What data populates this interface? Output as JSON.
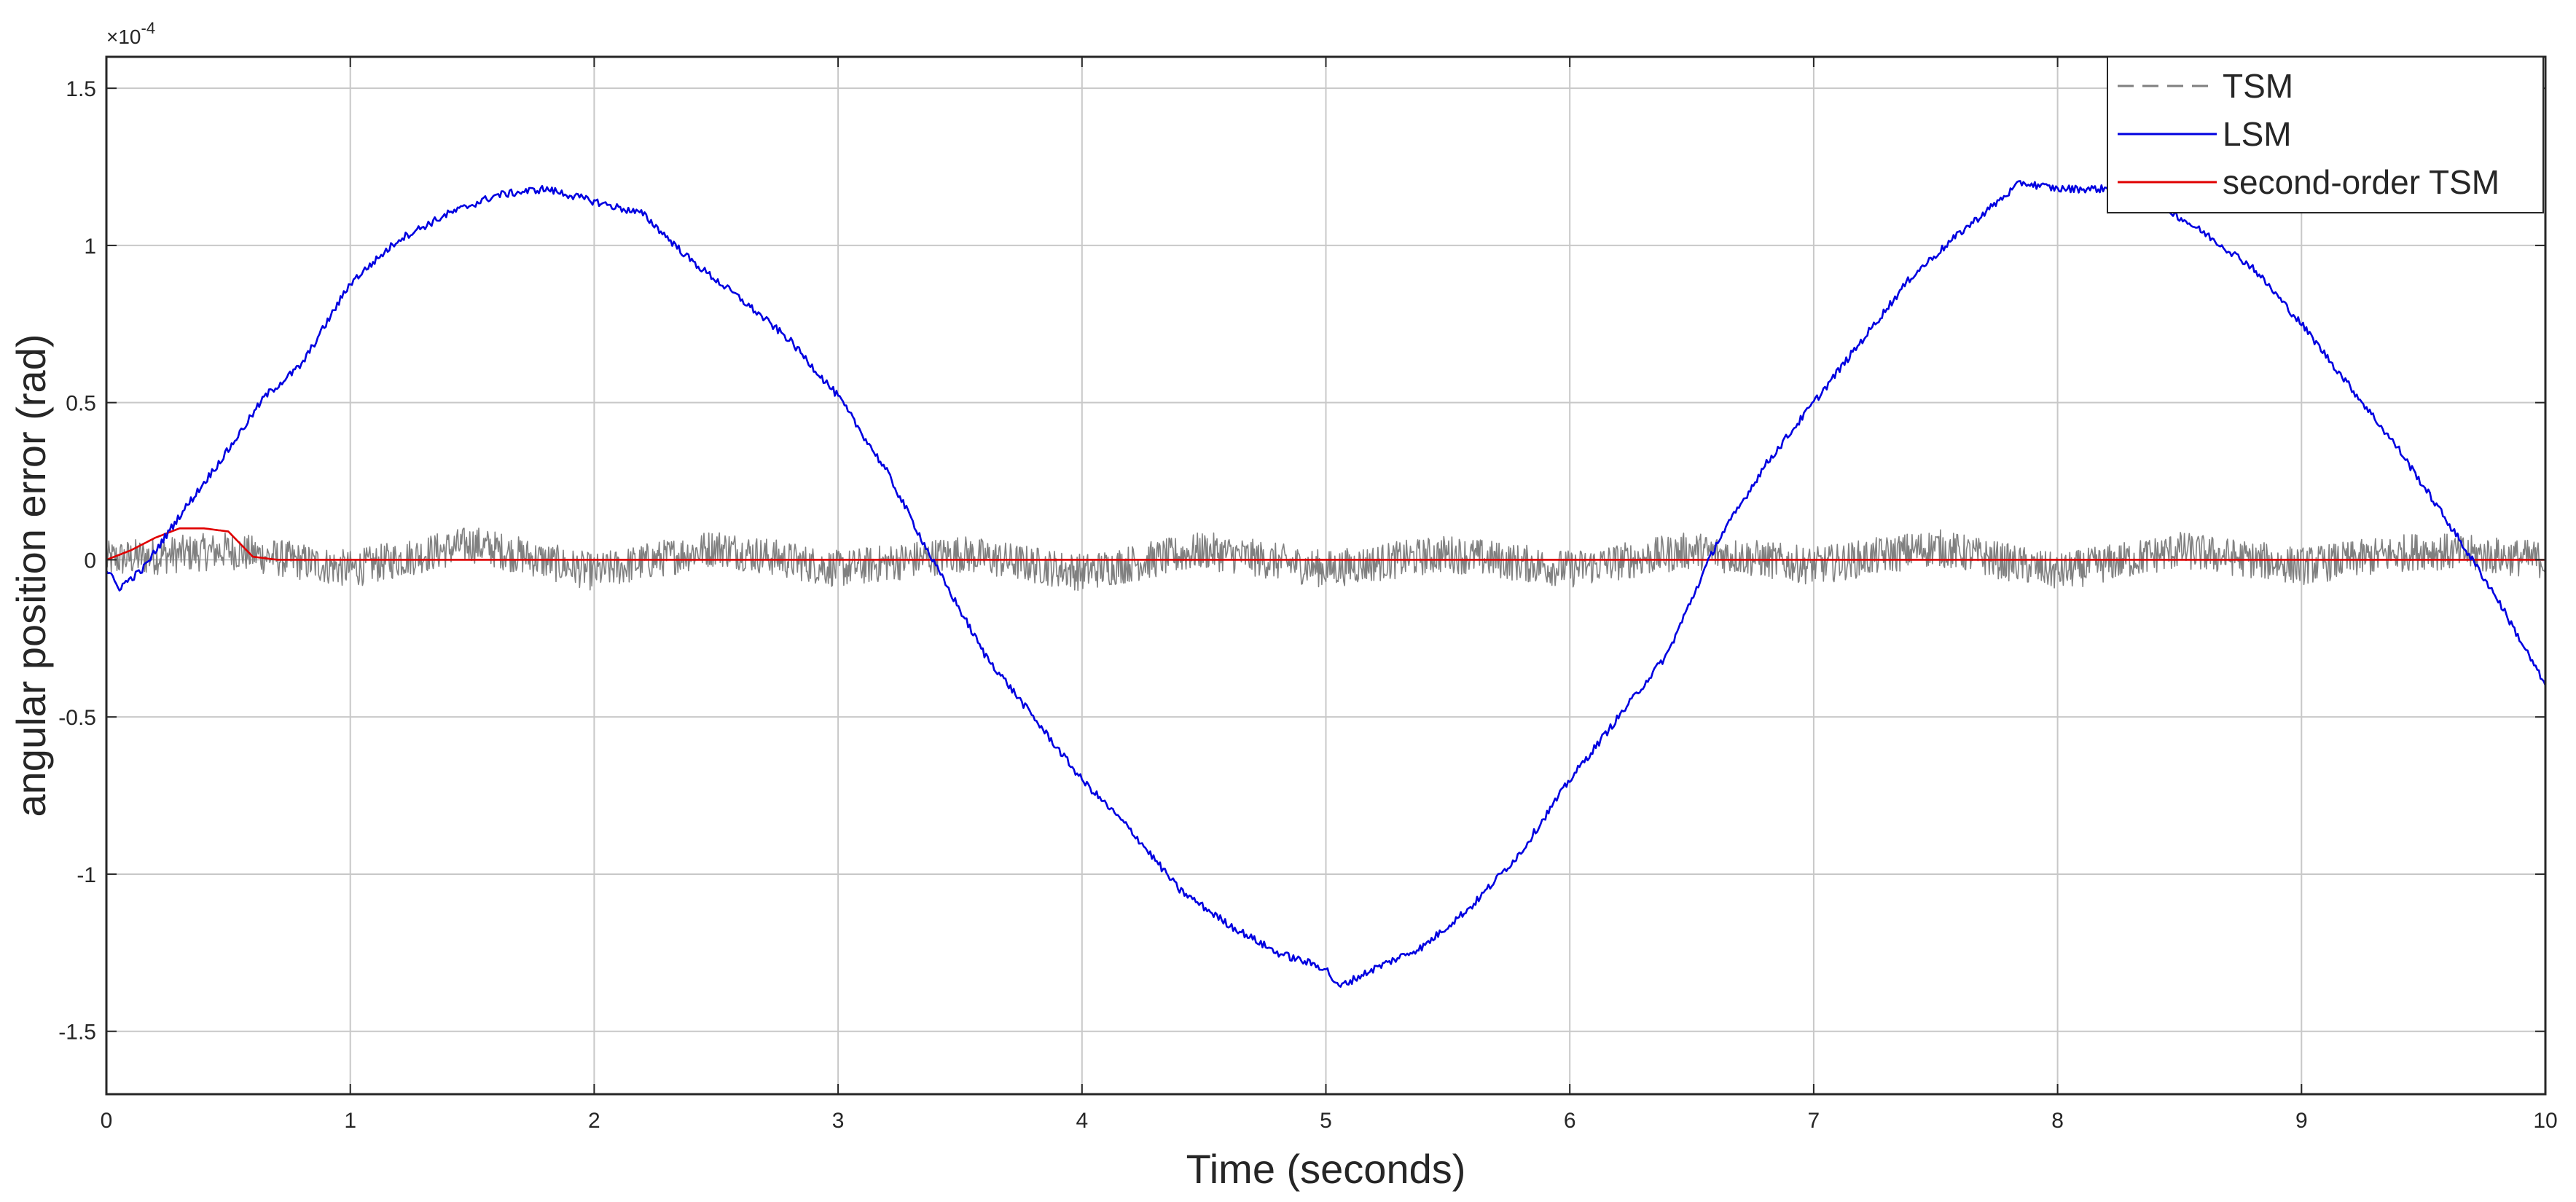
{
  "chart_data": {
    "type": "line",
    "title": "",
    "xlabel": "Time (seconds)",
    "ylabel": "angular position error (rad)",
    "y_exponent_base": "×10",
    "y_exponent_power": "-4",
    "xlim": [
      0,
      10
    ],
    "ylim": [
      -1.7,
      1.6
    ],
    "x_ticks": [
      0,
      1,
      2,
      3,
      4,
      5,
      6,
      7,
      8,
      9,
      10
    ],
    "x_tick_labels": [
      "0",
      "1",
      "2",
      "3",
      "4",
      "5",
      "6",
      "7",
      "8",
      "9",
      "10"
    ],
    "y_ticks": [
      -1.5,
      -1,
      -0.5,
      0,
      0.5,
      1,
      1.5
    ],
    "y_tick_labels": [
      "-1.5",
      "-1",
      "-0.5",
      "0",
      "0.5",
      "1",
      "1.5"
    ],
    "grid": true,
    "legend_position": "top-right",
    "series": [
      {
        "name": "TSM",
        "color": "#808080",
        "style": "dashed",
        "x": [
          0,
          0.5,
          1,
          1.5,
          2,
          2.5,
          3,
          3.5,
          4,
          4.5,
          5,
          5.5,
          6,
          6.5,
          7,
          7.5,
          8,
          8.5,
          9,
          9.5,
          10
        ],
        "y": [
          0,
          0.03,
          -0.03,
          0.05,
          -0.04,
          0.04,
          -0.03,
          0.02,
          -0.04,
          0.03,
          -0.03,
          0.02,
          -0.03,
          0.03,
          -0.02,
          0.04,
          -0.04,
          0.03,
          -0.02,
          0.03,
          0
        ],
        "amplitude": 0.06
      },
      {
        "name": "LSM",
        "color": "#0000e0",
        "style": "solid",
        "x": [
          0,
          0.05,
          0.15,
          0.3,
          0.5,
          0.65,
          0.8,
          1.0,
          1.2,
          1.4,
          1.6,
          1.8,
          2.0,
          2.2,
          2.4,
          2.6,
          2.8,
          3.0,
          3.2,
          3.4,
          3.6,
          3.8,
          4.0,
          4.2,
          4.4,
          4.6,
          4.8,
          5.0,
          5.05,
          5.2,
          5.4,
          5.6,
          5.8,
          6.0,
          6.2,
          6.4,
          6.6,
          6.8,
          7.0,
          7.2,
          7.4,
          7.6,
          7.85,
          8.0,
          8.2,
          8.4,
          8.6,
          8.8,
          9.0,
          9.2,
          9.4,
          9.6,
          9.8,
          10.0
        ],
        "y": [
          -0.03,
          -0.09,
          -0.03,
          0.14,
          0.35,
          0.52,
          0.62,
          0.88,
          1.02,
          1.1,
          1.16,
          1.18,
          1.14,
          1.1,
          0.95,
          0.83,
          0.7,
          0.52,
          0.28,
          -0.02,
          -0.3,
          -0.5,
          -0.7,
          -0.86,
          -1.05,
          -1.16,
          -1.25,
          -1.3,
          -1.36,
          -1.3,
          -1.23,
          -1.1,
          -0.93,
          -0.7,
          -0.5,
          -0.3,
          0.05,
          0.3,
          0.5,
          0.7,
          0.9,
          1.04,
          1.2,
          1.18,
          1.18,
          1.14,
          1.04,
          0.93,
          0.75,
          0.55,
          0.35,
          0.12,
          -0.12,
          -0.4
        ],
        "amplitude": 0.012
      },
      {
        "name": "second-order TSM",
        "color": "#e00000",
        "style": "solid",
        "x": [
          0,
          0.1,
          0.2,
          0.3,
          0.4,
          0.5,
          0.55,
          0.6,
          0.7,
          1.0,
          2.0,
          3.0,
          4.0,
          5.0,
          6.0,
          7.0,
          8.0,
          9.0,
          10.0
        ],
        "y": [
          0,
          0.03,
          0.07,
          0.1,
          0.1,
          0.09,
          0.05,
          0.01,
          0,
          0,
          0,
          0,
          0,
          0,
          0,
          0,
          0,
          0,
          0
        ],
        "amplitude": 0.0
      }
    ]
  }
}
